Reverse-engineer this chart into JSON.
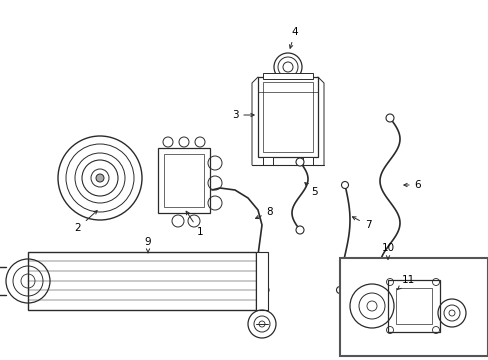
{
  "background_color": "#ffffff",
  "line_color": "#2a2a2a",
  "label_color": "#000000",
  "fig_width": 4.89,
  "fig_height": 3.6,
  "dpi": 100,
  "xlim": [
    0,
    489
  ],
  "ylim": [
    0,
    360
  ]
}
